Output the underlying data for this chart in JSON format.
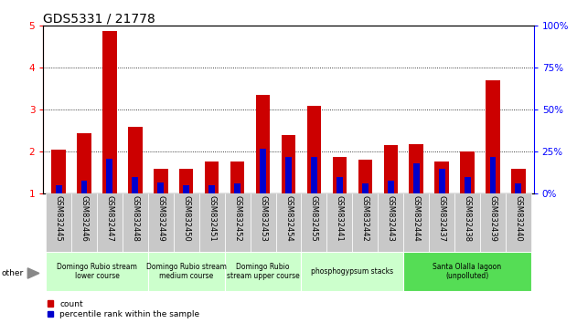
{
  "title": "GDS5331 / 21778",
  "samples": [
    "GSM832445",
    "GSM832446",
    "GSM832447",
    "GSM832448",
    "GSM832449",
    "GSM832450",
    "GSM832451",
    "GSM832452",
    "GSM832453",
    "GSM832454",
    "GSM832455",
    "GSM832441",
    "GSM832442",
    "GSM832443",
    "GSM832444",
    "GSM832437",
    "GSM832438",
    "GSM832439",
    "GSM832440"
  ],
  "count_values": [
    2.05,
    2.45,
    4.87,
    2.6,
    1.6,
    1.6,
    1.78,
    1.78,
    3.35,
    2.4,
    3.1,
    1.87,
    1.82,
    2.15,
    2.18,
    1.78,
    2.0,
    3.7,
    1.6
  ],
  "percentile_values": [
    5,
    8,
    21,
    10,
    7,
    5,
    5,
    6,
    27,
    22,
    22,
    10,
    6,
    8,
    18,
    15,
    10,
    22,
    6
  ],
  "ylim_left": [
    1,
    5
  ],
  "ylim_right": [
    0,
    100
  ],
  "yticks_left": [
    1,
    2,
    3,
    4,
    5
  ],
  "yticks_right": [
    0,
    25,
    50,
    75,
    100
  ],
  "bar_color_count": "#cc0000",
  "bar_color_percentile": "#0000cc",
  "groups": [
    {
      "label": "Domingo Rubio stream\nlower course",
      "start": 0,
      "end": 3,
      "color": "#ccffcc"
    },
    {
      "label": "Domingo Rubio stream\nmedium course",
      "start": 4,
      "end": 6,
      "color": "#ccffcc"
    },
    {
      "label": "Domingo Rubio\nstream upper course",
      "start": 7,
      "end": 9,
      "color": "#ccffcc"
    },
    {
      "label": "phosphogypsum stacks",
      "start": 10,
      "end": 13,
      "color": "#ccffcc"
    },
    {
      "label": "Santa Olalla lagoon\n(unpolluted)",
      "start": 14,
      "end": 18,
      "color": "#55dd55"
    }
  ],
  "other_label": "other",
  "tick_bg_color": "#c8c8c8",
  "plot_bg_color": "#ffffff",
  "figure_bg_color": "#ffffff",
  "legend_count_label": "count",
  "legend_percentile_label": "percentile rank within the sample",
  "title_fontsize": 10,
  "tick_fontsize": 6,
  "group_fontsize": 5.5,
  "bar_width": 0.55
}
